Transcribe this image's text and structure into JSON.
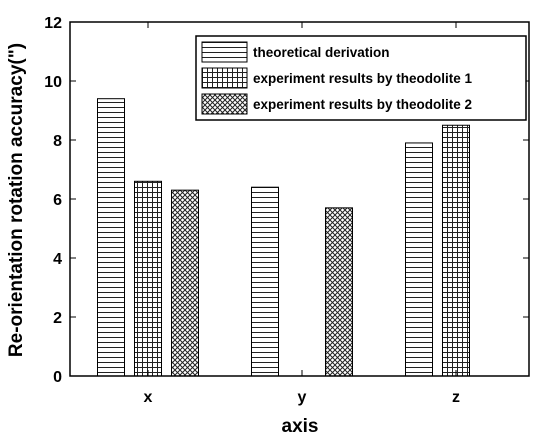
{
  "chart_data": {
    "type": "bar",
    "xlabel": "axis",
    "ylabel": "Re-orientation rotation accuracy(\")",
    "categories": [
      "x",
      "y",
      "z"
    ],
    "ylim": [
      0,
      12
    ],
    "yticks": [
      "0",
      "2",
      "4",
      "6",
      "8",
      "10",
      "12"
    ],
    "grid": false,
    "legend_position": "top-right",
    "series": [
      {
        "name": "theoretical derivation",
        "pattern": "horizontal-lines",
        "values": [
          9.4,
          6.4,
          7.9
        ]
      },
      {
        "name": "experiment results by theodolite 1",
        "pattern": "grid",
        "values": [
          6.6,
          0,
          8.5
        ]
      },
      {
        "name": "experiment results by theodolite 2",
        "pattern": "crosshatch",
        "values": [
          6.3,
          5.7,
          null
        ]
      }
    ]
  }
}
